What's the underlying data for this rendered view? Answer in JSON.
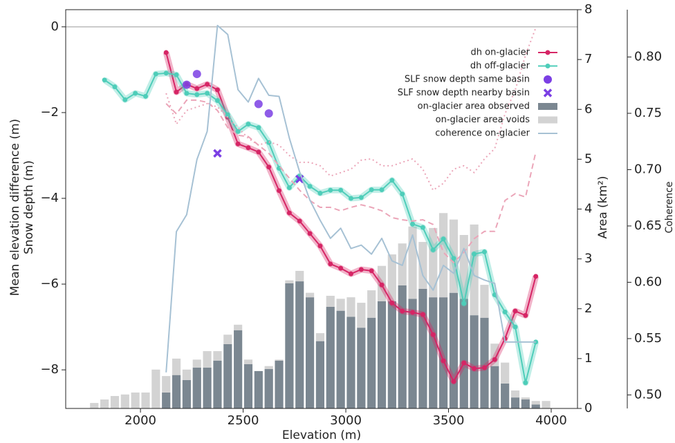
{
  "chart_data": {
    "type": "combo",
    "xlabel": "Elevation (m)",
    "ylabel": [
      "Mean elevation difference (m)",
      "Snow depth (m)"
    ],
    "y2label": "Area (km²)",
    "y3label": "Coherence",
    "xlim": [
      1636,
      4128
    ],
    "xticks": [
      2000,
      2500,
      3000,
      3500,
      4000
    ],
    "ylim": [
      -8.9,
      0.4
    ],
    "yticks": [
      {
        "value": -8,
        "label": "−8"
      },
      {
        "value": -6,
        "label": "−6"
      },
      {
        "value": -4,
        "label": "−4"
      },
      {
        "value": -2,
        "label": "−2"
      },
      0
    ],
    "y2lim": [
      0,
      8
    ],
    "y2ticks": [
      0,
      1,
      2,
      3,
      4,
      5,
      6,
      7,
      8
    ],
    "y3lim": [
      0.488,
      0.842
    ],
    "y3ticks": [
      {
        "value": 0.5,
        "label": "0.50"
      },
      0.55,
      {
        "value": 0.6,
        "label": "0.60"
      },
      0.65,
      {
        "value": 0.7,
        "label": "0.70"
      },
      0.75,
      {
        "value": 0.8,
        "label": "0.80"
      }
    ],
    "y3color": "#1f5f8b",
    "hline": 0,
    "legend": "upper right",
    "series": [
      {
        "name": "dh on-glacier",
        "type": "line",
        "axis": "y",
        "color": "#d62565",
        "marker": "o",
        "band": true,
        "x": [
          2125,
          2175,
          2225,
          2275,
          2325,
          2375,
          2425,
          2475,
          2525,
          2575,
          2625,
          2675,
          2725,
          2775,
          2825,
          2875,
          2925,
          2975,
          3025,
          3075,
          3125,
          3175,
          3225,
          3275,
          3325,
          3375,
          3425,
          3475,
          3525,
          3575,
          3625,
          3675,
          3725,
          3775,
          3825,
          3875,
          3925
        ],
        "values": [
          -0.6,
          -1.52,
          -1.34,
          -1.44,
          -1.34,
          -1.47,
          -2.11,
          -2.73,
          -2.82,
          -2.92,
          -3.27,
          -3.82,
          -4.34,
          -4.53,
          -4.82,
          -5.11,
          -5.53,
          -5.63,
          -5.76,
          -5.66,
          -5.69,
          -6.02,
          -6.44,
          -6.63,
          -6.66,
          -6.71,
          -7.18,
          -7.79,
          -8.27,
          -7.84,
          -7.97,
          -7.95,
          -7.76,
          -7.27,
          -6.63,
          -6.73,
          -5.82
        ]
      },
      {
        "name": "dh off-glacier",
        "type": "line",
        "axis": "y",
        "color": "#4ecdb9",
        "marker": "o",
        "band": true,
        "x": [
          1825,
          1875,
          1925,
          1975,
          2025,
          2075,
          2125,
          2175,
          2225,
          2275,
          2325,
          2375,
          2425,
          2475,
          2525,
          2575,
          2625,
          2675,
          2725,
          2775,
          2825,
          2875,
          2925,
          2975,
          3025,
          3075,
          3125,
          3175,
          3225,
          3275,
          3325,
          3375,
          3425,
          3475,
          3525,
          3575,
          3625,
          3675,
          3725,
          3775,
          3825,
          3875,
          3925
        ],
        "values": [
          -1.24,
          -1.4,
          -1.7,
          -1.55,
          -1.62,
          -1.1,
          -1.08,
          -1.12,
          -1.55,
          -1.58,
          -1.55,
          -1.72,
          -2.05,
          -2.44,
          -2.27,
          -2.35,
          -2.7,
          -3.3,
          -3.75,
          -3.48,
          -3.72,
          -3.88,
          -3.81,
          -3.81,
          -4.0,
          -3.98,
          -3.8,
          -3.8,
          -3.58,
          -3.9,
          -4.6,
          -4.68,
          -5.2,
          -4.95,
          -5.4,
          -6.45,
          -5.3,
          -5.25,
          -6.25,
          -6.65,
          -7.0,
          -8.3,
          -7.35
        ]
      },
      {
        "name": "SLF snow depth same basin",
        "type": "scatter",
        "axis": "y",
        "color": "#7b3fe4",
        "marker": "o",
        "x": [
          2225,
          2275,
          2575,
          2625
        ],
        "values": [
          -1.35,
          -1.1,
          -1.8,
          -2.02
        ]
      },
      {
        "name": "SLF snow depth nearby basin",
        "type": "scatter",
        "axis": "y",
        "color": "#7b3fe4",
        "marker": "x",
        "x": [
          2375,
          2775
        ],
        "values": [
          -2.95,
          -3.55
        ]
      },
      {
        "name": "on-glacier area observed",
        "type": "bar",
        "axis": "y2",
        "color": "#7b8791",
        "x": [
          1775,
          1825,
          1875,
          1925,
          1975,
          2025,
          2075,
          2125,
          2175,
          2225,
          2275,
          2325,
          2375,
          2425,
          2475,
          2525,
          2575,
          2625,
          2675,
          2725,
          2775,
          2825,
          2875,
          2925,
          2975,
          3025,
          3075,
          3125,
          3175,
          3225,
          3275,
          3325,
          3375,
          3425,
          3475,
          3525,
          3575,
          3625,
          3675,
          3725,
          3775,
          3825,
          3875,
          3925,
          3975
        ],
        "values": [
          0,
          0,
          0,
          0,
          0,
          0,
          0,
          0.32,
          0.67,
          0.57,
          0.82,
          0.82,
          0.96,
          1.29,
          1.57,
          0.89,
          0.75,
          0.79,
          0.96,
          2.51,
          2.55,
          2.23,
          1.35,
          2.04,
          1.96,
          1.84,
          1.62,
          1.82,
          2.15,
          2.15,
          2.47,
          2.2,
          2.4,
          2.23,
          2.23,
          2.32,
          2.2,
          1.87,
          1.82,
          0.85,
          0.5,
          0.22,
          0.18,
          0.08,
          0
        ]
      },
      {
        "name": "on-glacier area voids",
        "type": "bar",
        "axis": "y2",
        "color": "#d3d3d3",
        "stack": true,
        "x": [
          1775,
          1825,
          1875,
          1925,
          1975,
          2025,
          2075,
          2125,
          2175,
          2225,
          2275,
          2325,
          2375,
          2425,
          2475,
          2525,
          2575,
          2625,
          2675,
          2725,
          2775,
          2825,
          2875,
          2925,
          2975,
          3025,
          3075,
          3125,
          3175,
          3225,
          3275,
          3325,
          3375,
          3425,
          3475,
          3525,
          3575,
          3625,
          3675,
          3725,
          3775,
          3825,
          3875,
          3925,
          3975
        ],
        "values": [
          0.11,
          0.18,
          0.25,
          0.28,
          0.32,
          0.32,
          0.78,
          0.33,
          0.33,
          0.21,
          0.16,
          0.33,
          0.19,
          0.19,
          0.11,
          0.09,
          0,
          0.06,
          0.02,
          0.06,
          0.21,
          0.09,
          0.16,
          0.22,
          0.24,
          0.39,
          0.5,
          0.55,
          0.71,
          0.94,
          0.84,
          1.45,
          0.94,
          1.39,
          1.69,
          1.47,
          1.28,
          1.82,
          0.66,
          0.45,
          0.42,
          0.14,
          0.04,
          0.07,
          0.15
        ]
      },
      {
        "name": "coherence on-glacier",
        "type": "line",
        "axis": "y3",
        "color": "#a6c1d4",
        "x": [
          2125,
          2175,
          2225,
          2275,
          2325,
          2375,
          2425,
          2475,
          2525,
          2575,
          2625,
          2675,
          2725,
          2775,
          2825,
          2875,
          2925,
          2975,
          3025,
          3075,
          3125,
          3175,
          3225,
          3275,
          3325,
          3375,
          3425,
          3475,
          3525,
          3575,
          3625,
          3675,
          3725,
          3775,
          3825,
          3875,
          3925
        ],
        "values": [
          0.52,
          0.645,
          0.66,
          0.709,
          0.734,
          0.828,
          0.82,
          0.771,
          0.76,
          0.781,
          0.766,
          0.765,
          0.728,
          0.698,
          0.673,
          0.655,
          0.639,
          0.648,
          0.63,
          0.633,
          0.625,
          0.639,
          0.619,
          0.615,
          0.642,
          0.606,
          0.593,
          0.615,
          0.608,
          0.63,
          0.606,
          0.602,
          0.599,
          0.547,
          0.547,
          0.547,
          0.547
        ]
      },
      {
        "type": "line",
        "axis": "y",
        "color": "#eba5b8",
        "style": "dotted",
        "x": [
          2125,
          2175,
          2225,
          2275,
          2325,
          2375,
          2425,
          2475,
          2525,
          2575,
          2625,
          2675,
          2725,
          2775,
          2825,
          2875,
          2925,
          2975,
          3025,
          3075,
          3125,
          3175,
          3225,
          3275,
          3325,
          3375,
          3425,
          3475,
          3525,
          3575,
          3625,
          3675,
          3725,
          3775,
          3825,
          3875,
          3925
        ],
        "values": [
          -1.55,
          -2.27,
          -1.95,
          -1.87,
          -1.79,
          -1.87,
          -2.11,
          -2.35,
          -2.6,
          -2.76,
          -2.68,
          -2.76,
          -3.0,
          -3.16,
          -3.16,
          -3.24,
          -3.48,
          -3.4,
          -3.32,
          -3.11,
          -3.08,
          -3.24,
          -3.24,
          -3.16,
          -3.08,
          -3.32,
          -3.81,
          -3.65,
          -3.32,
          -3.24,
          -3.4,
          -3.08,
          -2.84,
          -2.03,
          -1.47,
          -0.66,
          -0.02
        ]
      },
      {
        "type": "line",
        "axis": "y",
        "color": "#eba5b8",
        "style": "dashed",
        "x": [
          2125,
          2175,
          2225,
          2275,
          2325,
          2375,
          2425,
          2475,
          2525,
          2575,
          2625,
          2675,
          2725,
          2775,
          2825,
          2875,
          2925,
          2975,
          3025,
          3075,
          3125,
          3175,
          3225,
          3275,
          3325,
          3375,
          3425,
          3475,
          3525,
          3575,
          3625,
          3675,
          3725,
          3775,
          3825,
          3875,
          3925
        ],
        "values": [
          -1.79,
          -2.03,
          -1.71,
          -1.71,
          -1.76,
          -1.95,
          -2.35,
          -2.53,
          -2.56,
          -2.76,
          -2.95,
          -3.24,
          -3.53,
          -3.81,
          -4.05,
          -4.21,
          -4.21,
          -4.29,
          -4.21,
          -4.15,
          -4.21,
          -4.29,
          -4.45,
          -4.5,
          -4.53,
          -4.5,
          -4.61,
          -5.26,
          -5.5,
          -5.26,
          -4.94,
          -4.77,
          -4.77,
          -4.05,
          -3.89,
          -3.97,
          -2.92
        ]
      }
    ]
  }
}
